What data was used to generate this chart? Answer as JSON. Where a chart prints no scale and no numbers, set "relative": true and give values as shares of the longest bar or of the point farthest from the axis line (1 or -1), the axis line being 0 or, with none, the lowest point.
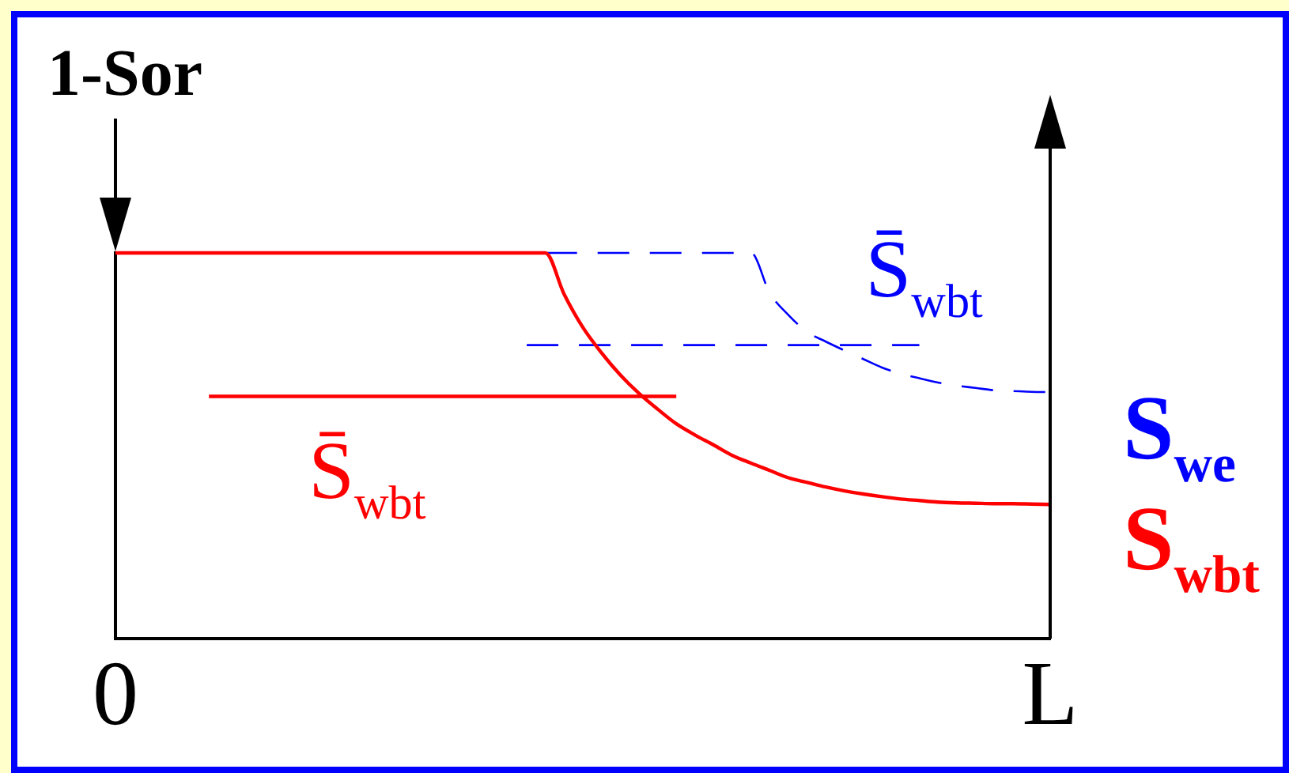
{
  "chart_data": {
    "type": "line",
    "relative": true,
    "tick_labels": "x",
    "marker": "none",
    "categories": [
      "0",
      null,
      null,
      null,
      null,
      null,
      null,
      null,
      null,
      null,
      null,
      null,
      null,
      null,
      null,
      null,
      null,
      null,
      null,
      null,
      null,
      null,
      null,
      null,
      null,
      null,
      null,
      null,
      null,
      null,
      null,
      null,
      null,
      null,
      null,
      null,
      null,
      null,
      null,
      null,
      null,
      null,
      null,
      null,
      null,
      null,
      null,
      null,
      null,
      null,
      "L"
    ],
    "series": [
      {
        "name": "S$_{wbt}$",
        "color": "#ff0000",
        "line_style": "solid",
        "values": [
          1,
          1,
          1,
          1,
          1,
          1,
          1,
          1,
          1,
          1,
          1,
          1,
          1,
          1,
          1,
          1,
          1,
          1,
          1,
          1,
          1,
          1,
          1,
          1,
          0.893,
          0.807,
          0.741,
          0.684,
          0.636,
          0.595,
          0.557,
          0.528,
          0.502,
          0.475,
          0.455,
          0.436,
          0.417,
          0.405,
          0.393,
          0.383,
          0.375,
          0.368,
          0.362,
          0.358,
          0.354,
          0.352,
          0.351,
          0.35,
          0.35,
          0.349,
          0.348
        ]
      },
      {
        "name": "S$_{we}$",
        "color": "#0000ff",
        "line_style": "dashed",
        "values": [
          null,
          null,
          null,
          null,
          null,
          null,
          null,
          null,
          null,
          null,
          null,
          null,
          null,
          null,
          null,
          null,
          null,
          null,
          null,
          null,
          null,
          null,
          null,
          1,
          1,
          1,
          1,
          1,
          1,
          1,
          1,
          1,
          1,
          1,
          1,
          0.896,
          0.839,
          0.795,
          0.77,
          0.747,
          0.725,
          0.703,
          0.687,
          0.675,
          0.664,
          0.656,
          0.65,
          0.644,
          0.642,
          0.64,
          0.639
        ]
      },
      {
        "name": "S̄$_{wbt}$",
        "color": "#ff0000",
        "line_style": "solid",
        "values": [
          null,
          null,
          null,
          null,
          null,
          0.628,
          0.628,
          0.628,
          0.628,
          0.628,
          0.628,
          0.628,
          0.628,
          0.628,
          0.628,
          0.628,
          0.628,
          0.628,
          0.628,
          0.628,
          0.628,
          0.628,
          0.628,
          0.628,
          0.628,
          0.628,
          0.628,
          0.628,
          0.628,
          0.628,
          0.628,
          null,
          null,
          null,
          null,
          null,
          null,
          null,
          null,
          null,
          null,
          null,
          null,
          null,
          null,
          null,
          null,
          null,
          null,
          null,
          null
        ]
      },
      {
        "name": "S̄$_{wbt}$",
        "color": "#0000ff",
        "line_style": "dashed",
        "values": [
          null,
          null,
          null,
          null,
          null,
          null,
          null,
          null,
          null,
          null,
          null,
          null,
          null,
          null,
          null,
          null,
          null,
          null,
          null,
          null,
          null,
          null,
          0.761,
          0.761,
          0.761,
          0.761,
          0.761,
          0.761,
          0.761,
          0.761,
          0.761,
          0.761,
          0.761,
          0.761,
          0.761,
          0.761,
          0.761,
          0.761,
          0.761,
          0.761,
          0.761,
          0.761,
          0.761,
          0.761,
          null,
          null,
          null,
          null,
          null,
          null,
          null
        ]
      }
    ],
    "annotations": [
      {
        "text": "1-Sor",
        "x": "0",
        "y": 1
      }
    ]
  }
}
